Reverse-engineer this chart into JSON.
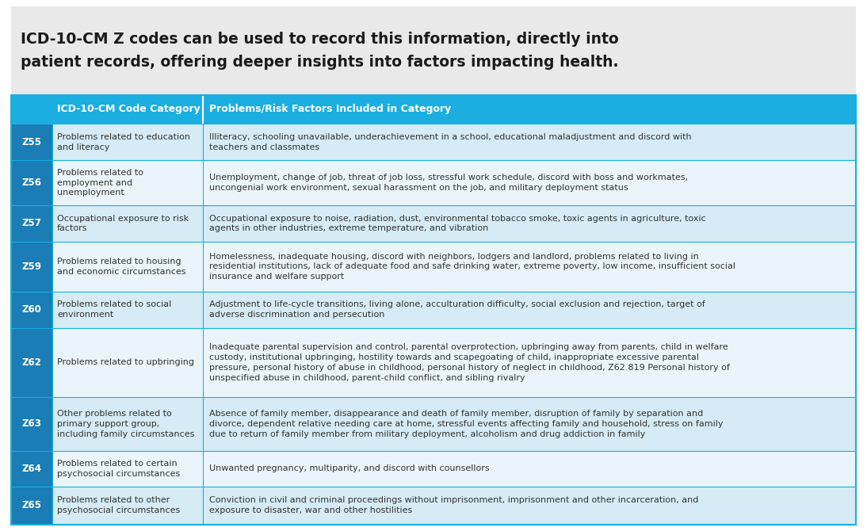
{
  "title_line1": "ICD-10-CM Z codes can be used to record this information, directly into",
  "title_line2": "patient records, offering deeper insights into factors impacting health.",
  "title_bg": "#e9e9e9",
  "header_bg": "#1aafe0",
  "header_text_color": "#ffffff",
  "col1_header": "ICD-10-CM Code Category",
  "col2_header": "Problems/Risk Factors Included in Category",
  "code_bg": "#1a7db5",
  "row_bg_even": "#d6ebf5",
  "row_bg_odd": "#eaf5fb",
  "border_color": "#1aafe0",
  "text_color": "#333333",
  "rows": [
    {
      "code": "Z55",
      "category": "Problems related to education\nand literacy",
      "description": "Illiteracy, schooling unavailable, underachievement in a school, educational maladjustment and discord with\nteachers and classmates"
    },
    {
      "code": "Z56",
      "category": "Problems related to\nemployment and\nunemployment",
      "description": "Unemployment, change of job, threat of job loss, stressful work schedule, discord with boss and workmates,\nuncongenial work environment, sexual harassment on the job, and military deployment status"
    },
    {
      "code": "Z57",
      "category": "Occupational exposure to risk\nfactors",
      "description": "Occupational exposure to noise, radiation, dust, environmental tobacco smoke, toxic agents in agriculture, toxic\nagents in other industries, extreme temperature, and vibration"
    },
    {
      "code": "Z59",
      "category": "Problems related to housing\nand economic circumstances",
      "description": "Homelessness, inadequate housing, discord with neighbors, lodgers and landlord, problems related to living in\nresidential institutions, lack of adequate food and safe drinking water, extreme poverty, low income, insufficient social\ninsurance and welfare support"
    },
    {
      "code": "Z60",
      "category": "Problems related to social\nenvironment",
      "description": "Adjustment to life-cycle transitions, living alone, acculturation difficulty, social exclusion and rejection, target of\nadverse discrimination and persecution"
    },
    {
      "code": "Z62",
      "category": "Problems related to upbringing",
      "description": "Inadequate parental supervision and control, parental overprotection, upbringing away from parents, child in welfare\ncustody, institutional upbringing, hostility towards and scapegoating of child, inappropriate excessive parental\npressure, personal history of abuse in childhood, personal history of neglect in childhood, Z62.819 Personal history of\nunspecified abuse in childhood, parent-child conflict, and sibling rivalry"
    },
    {
      "code": "Z63",
      "category": "Other problems related to\nprimary support group,\nincluding family circumstances",
      "description": "Absence of family member, disappearance and death of family member, disruption of family by separation and\ndivorce, dependent relative needing care at home, stressful events affecting family and household, stress on family\ndue to return of family member from military deployment, alcoholism and drug addiction in family"
    },
    {
      "code": "Z64",
      "category": "Problems related to certain\npsychosocial circumstances",
      "description": "Unwanted pregnancy, multiparity, and discord with counsellors"
    },
    {
      "code": "Z65",
      "category": "Problems related to other\npsychosocial circumstances",
      "description": "Conviction in civil and criminal proceedings without imprisonment, imprisonment and other incarceration, and\nexposure to disaster, war and other hostilities"
    }
  ],
  "fig_width": 10.94,
  "fig_height": 6.7,
  "dpi": 100
}
